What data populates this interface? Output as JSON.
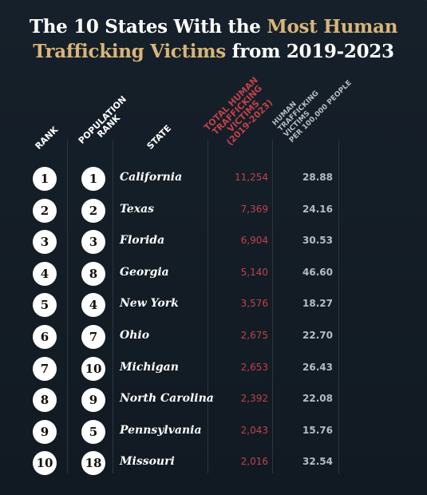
{
  "title": {
    "line1_plain": "The 10 States With the ",
    "line1_highlight": "Most Human",
    "line2_highlight": "Trafficking Victims",
    "line2_plain": " from 2019-2023"
  },
  "headers": {
    "rank": "RANK",
    "population_rank": [
      "POPULATION",
      "RANK"
    ],
    "state": "STATE",
    "total_victims": [
      "TOTAL HUMAN",
      "TRAFFICKING",
      "VICTIMS",
      "(2019-2023)"
    ],
    "per_100k": [
      "HUMAN",
      "TRAFFICKING",
      "VICTIMS",
      "PER 100,000 PEOPLE"
    ]
  },
  "colors": {
    "background": "#16202a",
    "highlight": "#d7b57a",
    "total_column": "#c0424a",
    "per_column": "#b6bcc3"
  },
  "rows": [
    {
      "rank": "1",
      "population_rank": "1",
      "state": "California",
      "total": "11,254",
      "per_100k": "28.88"
    },
    {
      "rank": "2",
      "population_rank": "2",
      "state": "Texas",
      "total": "7,369",
      "per_100k": "24.16"
    },
    {
      "rank": "3",
      "population_rank": "3",
      "state": "Florida",
      "total": "6,904",
      "per_100k": "30.53"
    },
    {
      "rank": "4",
      "population_rank": "8",
      "state": "Georgia",
      "total": "5,140",
      "per_100k": "46.60"
    },
    {
      "rank": "5",
      "population_rank": "4",
      "state": "New York",
      "total": "3,576",
      "per_100k": "18.27"
    },
    {
      "rank": "6",
      "population_rank": "7",
      "state": "Ohio",
      "total": "2,675",
      "per_100k": "22.70"
    },
    {
      "rank": "7",
      "population_rank": "10",
      "state": "Michigan",
      "total": "2,653",
      "per_100k": "26.43"
    },
    {
      "rank": "8",
      "population_rank": "9",
      "state": "North Carolina",
      "total": "2,392",
      "per_100k": "22.08"
    },
    {
      "rank": "9",
      "population_rank": "5",
      "state": "Pennsylvania",
      "total": "2,043",
      "per_100k": "15.76"
    },
    {
      "rank": "10",
      "population_rank": "18",
      "state": "Missouri",
      "total": "2,016",
      "per_100k": "32.54"
    }
  ]
}
